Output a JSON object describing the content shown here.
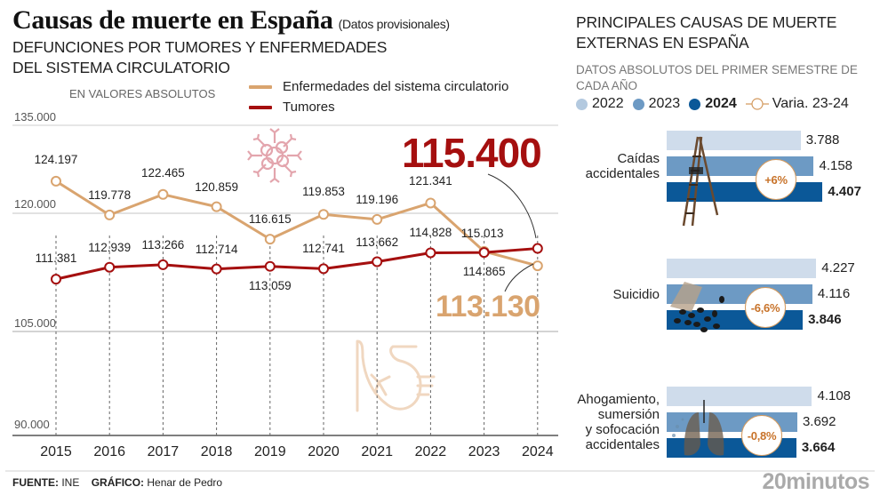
{
  "header": {
    "title": "Causas de muerte en España",
    "title_note": "(Datos provisionales)",
    "subtitle": "DEFUNCIONES POR TUMORES Y ENFERMEDADES DEL SISTEMA CIRCULATORIO",
    "units": "EN VALORES ABSOLUTOS"
  },
  "chart_data": [
    {
      "type": "line",
      "title": "Defunciones por tumores y enfermedades del sistema circulatorio",
      "xlabel": "",
      "ylabel": "En valores absolutos",
      "x": [
        "2015",
        "2016",
        "2017",
        "2018",
        "2019",
        "2020",
        "2021",
        "2022",
        "2023",
        "2024"
      ],
      "yticks": [
        "135.000",
        "120.000",
        "105.000",
        "90.000"
      ],
      "ylim": [
        90000,
        135000
      ],
      "grid": true,
      "legend": "top",
      "series": [
        {
          "name": "Enfermedades del sistema circulatorio",
          "color": "#d9a46f",
          "values": [
            124197,
            119778,
            122465,
            120859,
            116615,
            119853,
            119196,
            121341,
            115013,
            113130
          ],
          "labels": [
            "124.197",
            "119.778",
            "122.465",
            "120.859",
            "116.615",
            "119.853",
            "119.196",
            "121.341",
            "115.013",
            "113.130"
          ]
        },
        {
          "name": "Tumores",
          "color": "#a50f0f",
          "values": [
            111381,
            112939,
            113266,
            112714,
            113059,
            112741,
            113662,
            114828,
            114865,
            115400
          ],
          "labels": [
            "111.381",
            "112.939",
            "113.266",
            "112.714",
            "113.059",
            "112.741",
            "113.662",
            "114.828",
            "114.865",
            "115.400"
          ]
        }
      ],
      "annotations": [
        {
          "text": "115.400",
          "series": "Tumores",
          "year": "2024"
        },
        {
          "text": "113.130",
          "series": "Enfermedades del sistema circulatorio",
          "year": "2024"
        }
      ]
    },
    {
      "type": "bar",
      "title": "Principales causas de muerte externas en España",
      "subtitle": "Datos absolutos del primer semestre de cada año",
      "categories": [
        "Caídas accidentales",
        "Suicidio",
        "Ahogamiento, sumersión y sofocación accidentales"
      ],
      "legend": "top",
      "series": [
        {
          "name": "2022",
          "color": "#cfdceb",
          "values": [
            3788,
            4227,
            4108
          ]
        },
        {
          "name": "2023",
          "color": "#6d9ac4",
          "values": [
            4158,
            4116,
            3692
          ]
        },
        {
          "name": "2024",
          "color": "#0b5898",
          "values": [
            4407,
            3846,
            3664
          ]
        }
      ],
      "variation_23_24": [
        "+6%",
        "-6,6%",
        "-0,8%"
      ]
    }
  ],
  "line_legend": {
    "circ": "Enfermedades del sistema circulatorio",
    "tum": "Tumores"
  },
  "big_labels": {
    "tum": "115.400",
    "circ": "113.130"
  },
  "right": {
    "title": "PRINCIPALES CAUSAS DE MUERTE EXTERNAS EN ESPAÑA",
    "subtitle": "DATOS ABSOLUTOS DEL PRIMER SEMESTRE DE CADA AÑO",
    "legend": [
      "2022",
      "2023",
      "2024",
      "Varia. 23-24"
    ],
    "groups": [
      {
        "label_lines": [
          "Caídas",
          "accidentales"
        ],
        "values": [
          "3.788",
          "4.158",
          "4.407"
        ],
        "nums": [
          3788,
          4158,
          4407
        ],
        "variation": "+6%",
        "icon": "ladder-icon"
      },
      {
        "label_lines": [
          "Suicidio"
        ],
        "values": [
          "4.227",
          "4.116",
          "3.846"
        ],
        "nums": [
          4227,
          4116,
          3846
        ],
        "variation": "-6,6%",
        "icon": "pills-icon"
      },
      {
        "label_lines": [
          "Ahogamiento,",
          "sumersión",
          "y sofocación",
          "accidentales"
        ],
        "values": [
          "4.108",
          "3.692",
          "3.664"
        ],
        "nums": [
          4108,
          3692,
          3664
        ],
        "variation": "-0,8%",
        "icon": "lungs-icon"
      }
    ],
    "colors": [
      "#cfdceb",
      "#6d9ac4",
      "#0b5898"
    ]
  },
  "footer": {
    "source_label": "FUENTE:",
    "source": "INE",
    "graphic_label": "GRÁFICO:",
    "graphic": "Henar de Pedro",
    "brand": "20minutos"
  }
}
